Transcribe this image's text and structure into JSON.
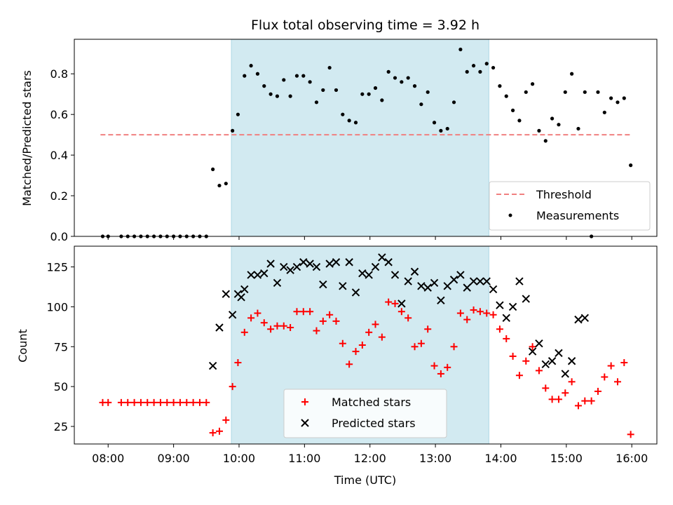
{
  "chart_data": [
    {
      "type": "scatter",
      "title": "Flux total observing time = 3.92 h",
      "ylabel": "Matched/Predicted stars",
      "xlabel": "",
      "xlim": [
        "07:29",
        "16:23"
      ],
      "ylim": [
        0,
        0.97
      ],
      "yticks": [
        0.0,
        0.2,
        0.4,
        0.6,
        0.8
      ],
      "shaded_interval": [
        "09:53",
        "13:49"
      ],
      "shade_color": "#add8e6",
      "threshold": {
        "name": "Threshold",
        "y": 0.5,
        "x_range": [
          "07:53",
          "16:00"
        ],
        "color": "#f08080"
      },
      "series": [
        {
          "name": "Measurements",
          "color": "#000000",
          "x": [
            "07:55",
            "08:00",
            "08:12",
            "08:18",
            "08:24",
            "08:30",
            "08:36",
            "08:42",
            "08:48",
            "08:54",
            "09:00",
            "09:06",
            "09:12",
            "09:18",
            "09:24",
            "09:30",
            "09:36",
            "09:42",
            "09:48",
            "09:54",
            "09:59",
            "10:05",
            "10:11",
            "10:17",
            "10:23",
            "10:29",
            "10:35",
            "10:41",
            "10:47",
            "10:53",
            "10:59",
            "11:05",
            "11:11",
            "11:17",
            "11:23",
            "11:29",
            "11:35",
            "11:41",
            "11:47",
            "11:53",
            "11:59",
            "12:05",
            "12:11",
            "12:17",
            "12:23",
            "12:29",
            "12:35",
            "12:41",
            "12:47",
            "12:53",
            "12:59",
            "13:05",
            "13:11",
            "13:17",
            "13:23",
            "13:29",
            "13:35",
            "13:41",
            "13:47",
            "13:53",
            "13:59",
            "14:05",
            "14:11",
            "14:17",
            "14:23",
            "14:29",
            "14:35",
            "14:41",
            "14:47",
            "14:53",
            "14:59",
            "15:05",
            "15:11",
            "15:17",
            "15:23",
            "15:29",
            "15:35",
            "15:41",
            "15:47",
            "15:53",
            "15:59"
          ],
          "y": [
            0,
            0,
            0,
            0,
            0,
            0,
            0,
            0,
            0,
            0,
            0,
            0,
            0,
            0,
            0,
            0,
            0.33,
            0.25,
            0.26,
            0.52,
            0.6,
            0.79,
            0.84,
            0.8,
            0.74,
            0.7,
            0.69,
            0.77,
            0.69,
            0.79,
            0.79,
            0.76,
            0.66,
            0.72,
            0.83,
            0.72,
            0.6,
            0.57,
            0.56,
            0.7,
            0.7,
            0.73,
            0.67,
            0.81,
            0.78,
            0.76,
            0.78,
            0.74,
            0.65,
            0.71,
            0.56,
            0.52,
            0.53,
            0.66,
            0.92,
            0.81,
            0.84,
            0.81,
            0.85,
            0.83,
            0.74,
            0.69,
            0.62,
            0.57,
            0.71,
            0.75,
            0.52,
            0.47,
            0.58,
            0.55,
            0.71,
            0.8,
            0.53,
            0.71,
            0,
            0.71,
            0.61,
            0.68,
            0.66,
            0.68,
            0.35
          ]
        }
      ]
    },
    {
      "type": "scatter",
      "title": "",
      "ylabel": "Count",
      "xlabel": "Time (UTC)",
      "xlim": [
        "07:29",
        "16:23"
      ],
      "ylim": [
        14,
        138
      ],
      "yticks": [
        25,
        50,
        75,
        100,
        125
      ],
      "xticks": [
        "08:00",
        "09:00",
        "10:00",
        "11:00",
        "12:00",
        "13:00",
        "14:00",
        "15:00",
        "16:00"
      ],
      "shaded_interval": [
        "09:53",
        "13:49"
      ],
      "shade_color": "#add8e6",
      "series": [
        {
          "name": "Matched stars",
          "color": "#ff0000",
          "marker": "plus",
          "x": [
            "07:55",
            "08:00",
            "08:12",
            "08:18",
            "08:24",
            "08:30",
            "08:36",
            "08:42",
            "08:48",
            "08:54",
            "09:00",
            "09:06",
            "09:12",
            "09:18",
            "09:24",
            "09:30",
            "09:36",
            "09:42",
            "09:48",
            "09:54",
            "09:59",
            "10:05",
            "10:11",
            "10:17",
            "10:23",
            "10:29",
            "10:35",
            "10:41",
            "10:47",
            "10:53",
            "10:59",
            "11:05",
            "11:11",
            "11:17",
            "11:23",
            "11:29",
            "11:35",
            "11:41",
            "11:47",
            "11:53",
            "11:59",
            "12:05",
            "12:11",
            "12:17",
            "12:23",
            "12:29",
            "12:35",
            "12:41",
            "12:47",
            "12:53",
            "12:59",
            "13:05",
            "13:11",
            "13:17",
            "13:23",
            "13:29",
            "13:35",
            "13:41",
            "13:47",
            "13:53",
            "13:59",
            "14:05",
            "14:11",
            "14:17",
            "14:23",
            "14:29",
            "14:35",
            "14:41",
            "14:47",
            "14:53",
            "14:59",
            "15:05",
            "15:11",
            "15:17",
            "15:23",
            "15:29",
            "15:35",
            "15:41",
            "15:47",
            "15:53",
            "15:59"
          ],
          "y": [
            40,
            40,
            40,
            40,
            40,
            40,
            40,
            40,
            40,
            40,
            40,
            40,
            40,
            40,
            40,
            40,
            21,
            22,
            29,
            50,
            65,
            84,
            93,
            96,
            90,
            86,
            88,
            88,
            87,
            97,
            97,
            97,
            85,
            91,
            95,
            91,
            77,
            64,
            72,
            76,
            84,
            89,
            81,
            103,
            102,
            97,
            93,
            75,
            77,
            86,
            63,
            58,
            62,
            75,
            96,
            92,
            98,
            97,
            96,
            95,
            86,
            80,
            69,
            57,
            66,
            75,
            60,
            49,
            42,
            42,
            46,
            53,
            38,
            41,
            41,
            47,
            56,
            63,
            53,
            65,
            20
          ]
        },
        {
          "name": "Predicted stars",
          "color": "#000000",
          "marker": "x",
          "x": [
            "09:36",
            "09:42",
            "09:48",
            "09:54",
            "09:59",
            "10:02",
            "10:05",
            "10:11",
            "10:17",
            "10:23",
            "10:29",
            "10:35",
            "10:41",
            "10:47",
            "10:53",
            "10:59",
            "11:05",
            "11:11",
            "11:17",
            "11:23",
            "11:29",
            "11:35",
            "11:41",
            "11:47",
            "11:53",
            "11:59",
            "12:05",
            "12:11",
            "12:17",
            "12:23",
            "12:29",
            "12:35",
            "12:41",
            "12:47",
            "12:53",
            "12:59",
            "13:05",
            "13:11",
            "13:17",
            "13:23",
            "13:29",
            "13:35",
            "13:41",
            "13:47",
            "13:53",
            "13:59",
            "14:05",
            "14:11",
            "14:17",
            "14:23",
            "14:29",
            "14:35",
            "14:41",
            "14:47",
            "14:53",
            "14:59",
            "15:05",
            "15:11",
            "15:17"
          ],
          "y": [
            63,
            87,
            108,
            95,
            108,
            106,
            111,
            120,
            120,
            121,
            127,
            115,
            125,
            123,
            125,
            128,
            127,
            125,
            114,
            127,
            128,
            113,
            128,
            109,
            121,
            120,
            125,
            131,
            128,
            120,
            102,
            116,
            122,
            113,
            112,
            115,
            104,
            113,
            117,
            120,
            112,
            116,
            116,
            116,
            111,
            101,
            93,
            100,
            116,
            105,
            72,
            77,
            64,
            66,
            71,
            58,
            66,
            92,
            93
          ]
        }
      ],
      "legend": {
        "placement": "lower-center",
        "entries": [
          "Matched stars",
          "Predicted stars"
        ]
      }
    }
  ]
}
